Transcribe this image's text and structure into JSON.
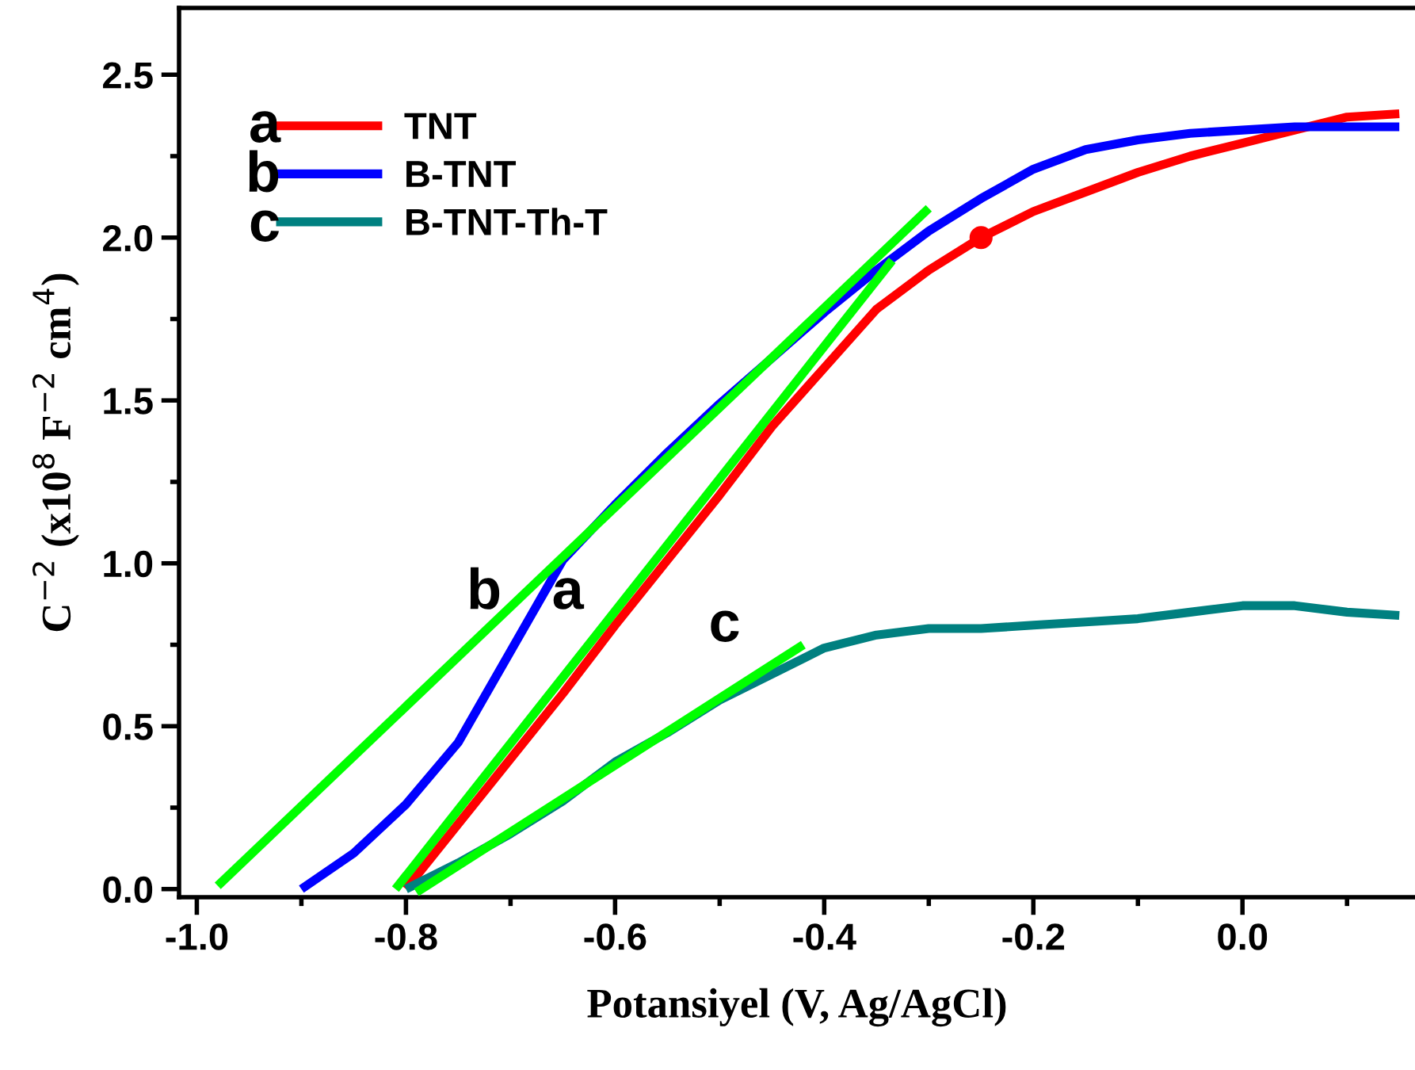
{
  "chart_data": {
    "type": "line",
    "xlabel": "Potansiyel (V, Ag/AgCl)",
    "ylabel": "C$^{−2}$ (x10$^{8}$ F$^{−2}$ cm$^{4}$)",
    "xlim": [
      -1.017,
      0.165
    ],
    "ylim": [
      -0.025,
      2.705
    ],
    "xticks": [
      {
        "value": -1.0,
        "label": "-1.0"
      },
      {
        "value": -0.9,
        "label": null
      },
      {
        "value": -0.8,
        "label": "-0.8"
      },
      {
        "value": -0.7,
        "label": null
      },
      {
        "value": -0.6,
        "label": "-0.6"
      },
      {
        "value": -0.5,
        "label": null
      },
      {
        "value": -0.4,
        "label": "-0.4"
      },
      {
        "value": -0.3,
        "label": null
      },
      {
        "value": -0.2,
        "label": "-0.2"
      },
      {
        "value": -0.1,
        "label": null
      },
      {
        "value": 0.0,
        "label": "0.0"
      },
      {
        "value": 0.1,
        "label": null
      }
    ],
    "yticks": [
      {
        "value": 0.0,
        "label": "0.0"
      },
      {
        "value": 0.25,
        "label": null
      },
      0.5,
      {
        "value": 0.75,
        "label": null
      },
      {
        "value": 1.0,
        "label": "1.0"
      },
      {
        "value": 1.25,
        "label": null
      },
      1.5,
      {
        "value": 1.75,
        "label": null
      },
      {
        "value": 2.0,
        "label": "2.0"
      },
      {
        "value": 2.25,
        "label": null
      },
      2.5
    ],
    "grid": false,
    "legend": "top left",
    "line_style": "solid",
    "marker": "none",
    "series": [
      {
        "name": "TNT",
        "color": "#ff0000",
        "x": [
          -0.8,
          -0.75,
          -0.7,
          -0.65,
          -0.6,
          -0.55,
          -0.5,
          -0.45,
          -0.4,
          -0.35,
          -0.3,
          -0.25,
          -0.2,
          -0.15,
          -0.1,
          -0.05,
          0.0,
          0.05,
          0.1,
          0.15
        ],
        "values": [
          0.0,
          0.2,
          0.4,
          0.6,
          0.81,
          1.01,
          1.21,
          1.42,
          1.6,
          1.78,
          1.9,
          2.0,
          2.08,
          2.14,
          2.2,
          2.25,
          2.29,
          2.33,
          2.37,
          2.38
        ]
      },
      {
        "name": "B-TNT",
        "color": "#0000ff",
        "x": [
          -0.9,
          -0.85,
          -0.8,
          -0.75,
          -0.7,
          -0.65,
          -0.6,
          -0.55,
          -0.5,
          -0.45,
          -0.4,
          -0.35,
          -0.3,
          -0.25,
          -0.2,
          -0.15,
          -0.1,
          -0.05,
          0.0,
          0.05,
          0.1,
          0.15
        ],
        "values": [
          0.0,
          0.11,
          0.26,
          0.45,
          0.73,
          1.01,
          1.18,
          1.34,
          1.49,
          1.63,
          1.77,
          1.9,
          2.02,
          2.12,
          2.21,
          2.27,
          2.3,
          2.32,
          2.33,
          2.34,
          2.34,
          2.34
        ]
      },
      {
        "name": "B-TNT-Th-T",
        "color": "#008080",
        "x": [
          -0.8,
          -0.75,
          -0.7,
          -0.65,
          -0.6,
          -0.55,
          -0.5,
          -0.45,
          -0.4,
          -0.35,
          -0.3,
          -0.25,
          -0.2,
          -0.15,
          -0.1,
          -0.05,
          0.0,
          0.05,
          0.1,
          0.15
        ],
        "values": [
          0.0,
          0.08,
          0.17,
          0.27,
          0.39,
          0.48,
          0.58,
          0.66,
          0.74,
          0.78,
          0.8,
          0.8,
          0.81,
          0.82,
          0.83,
          0.85,
          0.87,
          0.87,
          0.85,
          0.84
        ]
      },
      {
        "type": "scatter",
        "marker": "circle",
        "color": "#ff0000",
        "x": [
          -0.25
        ],
        "values": [
          2.0
        ]
      },
      {
        "color": "#00ff00",
        "x": [
          -0.98,
          -0.3
        ],
        "values": [
          0.01,
          2.09
        ]
      },
      {
        "color": "#00ff00",
        "x": [
          -0.81,
          -0.335
        ],
        "values": [
          0.0,
          1.93
        ]
      },
      {
        "color": "#00ff00",
        "x": [
          -0.79,
          -0.42
        ],
        "values": [
          -0.01,
          0.75
        ]
      }
    ],
    "annotations": [
      "a",
      "b",
      "c",
      {
        "text": "b",
        "x": -0.7,
        "y": 0.73
      },
      {
        "text": "a",
        "x": -0.62,
        "y": 0.73
      },
      {
        "text": "c",
        "x": -0.47,
        "y": 0.63
      }
    ]
  }
}
